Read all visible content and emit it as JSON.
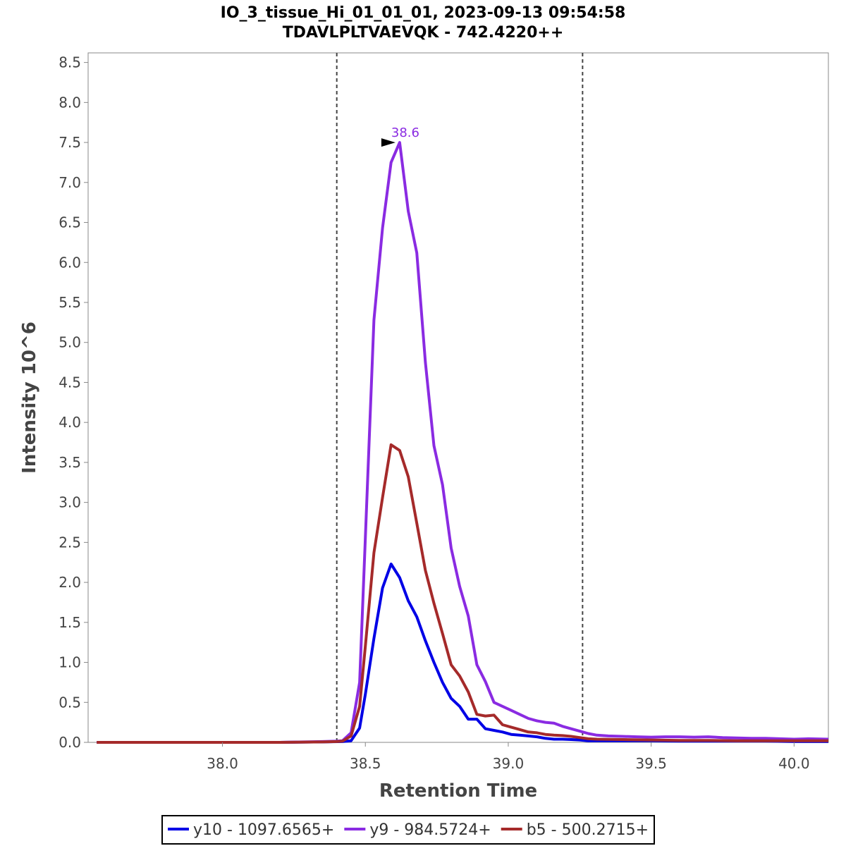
{
  "chart_data": {
    "type": "line",
    "title": [
      "IO_3_tissue_Hi_01_01_01, 2023-09-13 09:54:58",
      "TDAVLPLTVAEVQK - 742.4220++"
    ],
    "xlabel": "Retention Time",
    "ylabel": "Intensity 10^6",
    "xlim": [
      37.53,
      40.12
    ],
    "ylim": [
      0,
      8.62
    ],
    "x_ticks": [
      "38.0",
      "38.5",
      "39.0",
      "39.5",
      "40.0"
    ],
    "y_ticks": [
      "0.0",
      "0.5",
      "1.0",
      "1.5",
      "2.0",
      "2.5",
      "3.0",
      "3.5",
      "4.0",
      "4.5",
      "5.0",
      "5.5",
      "6.0",
      "6.5",
      "7.0",
      "7.5",
      "8.0",
      "8.5"
    ],
    "grid": false,
    "legend_position": "bottom",
    "integration_bounds": [
      38.4,
      39.26
    ],
    "peak_annotation": {
      "x": 38.62,
      "y": 7.5,
      "label": "38.6",
      "series": "y9 - 984.5724+"
    },
    "series": [
      {
        "name": "y10 - 1097.6565+",
        "color": "#0000e6",
        "x": [
          37.56,
          37.8,
          38.0,
          38.2,
          38.35,
          38.42,
          38.45,
          38.48,
          38.5,
          38.53,
          38.56,
          38.59,
          38.62,
          38.65,
          38.68,
          38.71,
          38.74,
          38.77,
          38.8,
          38.83,
          38.86,
          38.89,
          38.92,
          38.95,
          38.98,
          39.01,
          39.04,
          39.07,
          39.1,
          39.13,
          39.16,
          39.19,
          39.22,
          39.25,
          39.28,
          39.31,
          39.4,
          39.5,
          39.6,
          39.7,
          39.8,
          39.9,
          40.0,
          40.12
        ],
        "y": [
          0.0,
          0.0,
          0.0,
          0.0,
          0.005,
          0.01,
          0.02,
          0.18,
          0.6,
          1.3,
          1.93,
          2.23,
          2.06,
          1.77,
          1.57,
          1.27,
          1.0,
          0.75,
          0.55,
          0.45,
          0.29,
          0.29,
          0.17,
          0.15,
          0.13,
          0.1,
          0.09,
          0.08,
          0.07,
          0.05,
          0.04,
          0.04,
          0.035,
          0.03,
          0.02,
          0.02,
          0.02,
          0.02,
          0.015,
          0.015,
          0.015,
          0.015,
          0.01,
          0.01
        ]
      },
      {
        "name": "y9 - 984.5724+",
        "color": "#8a2be2",
        "x": [
          37.56,
          37.8,
          38.0,
          38.2,
          38.35,
          38.4,
          38.42,
          38.45,
          38.48,
          38.5,
          38.53,
          38.56,
          38.59,
          38.62,
          38.65,
          38.68,
          38.71,
          38.74,
          38.77,
          38.8,
          38.83,
          38.86,
          38.89,
          38.92,
          38.95,
          38.98,
          39.01,
          39.04,
          39.07,
          39.1,
          39.13,
          39.16,
          39.19,
          39.22,
          39.25,
          39.28,
          39.31,
          39.35,
          39.4,
          39.45,
          39.5,
          39.55,
          39.6,
          39.65,
          39.7,
          39.75,
          39.8,
          39.85,
          39.9,
          39.95,
          40.0,
          40.05,
          40.12
        ],
        "y": [
          0.0,
          0.0,
          0.0,
          0.0,
          0.01,
          0.015,
          0.02,
          0.12,
          0.75,
          2.55,
          5.28,
          6.43,
          7.25,
          7.5,
          6.64,
          6.12,
          4.75,
          3.71,
          3.22,
          2.43,
          1.95,
          1.58,
          0.97,
          0.76,
          0.5,
          0.45,
          0.4,
          0.35,
          0.3,
          0.27,
          0.25,
          0.24,
          0.2,
          0.17,
          0.14,
          0.11,
          0.09,
          0.08,
          0.075,
          0.07,
          0.065,
          0.07,
          0.07,
          0.065,
          0.07,
          0.06,
          0.055,
          0.05,
          0.05,
          0.045,
          0.04,
          0.045,
          0.04
        ]
      },
      {
        "name": "b5 - 500.2715+",
        "color": "#a52a2a",
        "x": [
          37.56,
          37.8,
          38.0,
          38.2,
          38.35,
          38.4,
          38.42,
          38.45,
          38.48,
          38.5,
          38.53,
          38.56,
          38.59,
          38.62,
          38.65,
          38.68,
          38.71,
          38.74,
          38.77,
          38.8,
          38.83,
          38.86,
          38.89,
          38.92,
          38.95,
          38.98,
          39.01,
          39.04,
          39.07,
          39.1,
          39.13,
          39.16,
          39.19,
          39.22,
          39.25,
          39.28,
          39.31,
          39.4,
          39.5,
          39.6,
          39.7,
          39.8,
          39.9,
          40.0,
          40.12
        ],
        "y": [
          0.0,
          0.0,
          0.0,
          0.0,
          0.005,
          0.01,
          0.015,
          0.08,
          0.45,
          1.2,
          2.37,
          3.06,
          3.72,
          3.65,
          3.32,
          2.74,
          2.15,
          1.74,
          1.36,
          0.97,
          0.83,
          0.63,
          0.35,
          0.33,
          0.34,
          0.22,
          0.19,
          0.16,
          0.13,
          0.12,
          0.1,
          0.09,
          0.085,
          0.075,
          0.06,
          0.045,
          0.04,
          0.035,
          0.03,
          0.025,
          0.025,
          0.02,
          0.02,
          0.02,
          0.02
        ]
      }
    ]
  }
}
